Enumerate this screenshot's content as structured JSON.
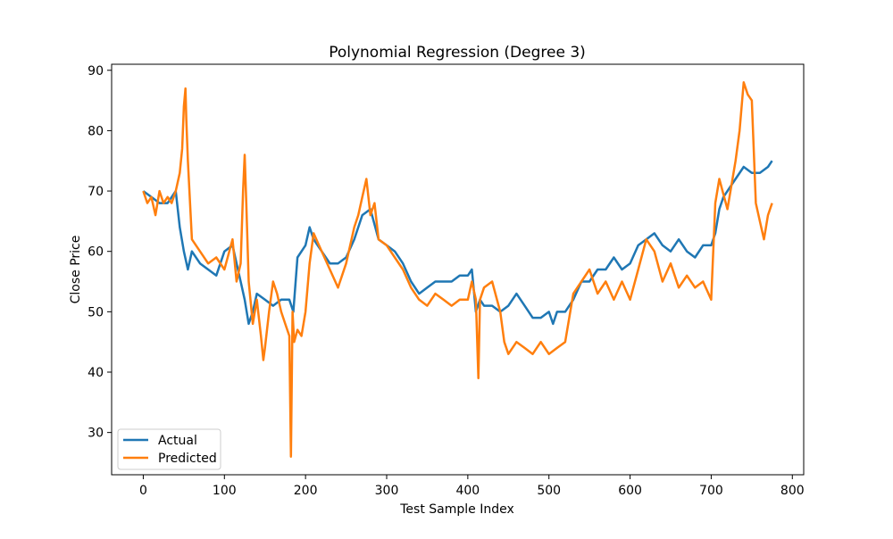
{
  "chart_data": {
    "type": "line",
    "title": "Polynomial Regression (Degree 3)",
    "xlabel": "Test Sample Index",
    "ylabel": "Close Price",
    "xlim": [
      -39,
      814
    ],
    "ylim": [
      23,
      91
    ],
    "xticks": [
      0,
      100,
      200,
      300,
      400,
      500,
      600,
      700,
      800
    ],
    "yticks": [
      30,
      40,
      50,
      60,
      70,
      80,
      90
    ],
    "grid": false,
    "legend_position": "lower-left",
    "series": [
      {
        "name": "Actual",
        "color": "#1f77b4",
        "x": [
          0,
          10,
          20,
          30,
          40,
          45,
          50,
          55,
          60,
          70,
          80,
          90,
          100,
          110,
          115,
          120,
          125,
          130,
          135,
          140,
          150,
          160,
          170,
          180,
          185,
          190,
          200,
          205,
          210,
          220,
          230,
          240,
          250,
          260,
          270,
          280,
          290,
          300,
          310,
          320,
          330,
          340,
          350,
          360,
          370,
          380,
          390,
          400,
          405,
          410,
          415,
          420,
          430,
          440,
          450,
          460,
          470,
          480,
          490,
          500,
          505,
          510,
          520,
          530,
          540,
          550,
          560,
          570,
          580,
          590,
          600,
          610,
          620,
          630,
          640,
          650,
          660,
          670,
          680,
          690,
          700,
          705,
          710,
          715,
          720,
          730,
          740,
          750,
          760,
          770,
          775
        ],
        "values": [
          70,
          69,
          68,
          68,
          70,
          64,
          60,
          57,
          60,
          58,
          57,
          56,
          60,
          61,
          58,
          55,
          52,
          48,
          50,
          53,
          52,
          51,
          52,
          52,
          50,
          59,
          61,
          64,
          62,
          60,
          58,
          58,
          59,
          62,
          66,
          67,
          62,
          61,
          60,
          58,
          55,
          53,
          54,
          55,
          55,
          55,
          56,
          56,
          57,
          50,
          52,
          51,
          51,
          50,
          51,
          53,
          51,
          49,
          49,
          50,
          48,
          50,
          50,
          52,
          55,
          55,
          57,
          57,
          59,
          57,
          58,
          61,
          62,
          63,
          61,
          60,
          62,
          60,
          59,
          61,
          61,
          63,
          67,
          69,
          70,
          72,
          74,
          73,
          73,
          74,
          75
        ]
      },
      {
        "name": "Predicted",
        "color": "#ff7f0e",
        "x": [
          0,
          5,
          10,
          15,
          20,
          25,
          30,
          35,
          40,
          45,
          48,
          50,
          52,
          53,
          55,
          60,
          70,
          80,
          90,
          100,
          110,
          115,
          120,
          123,
          125,
          127,
          130,
          135,
          140,
          145,
          148,
          150,
          155,
          160,
          165,
          170,
          175,
          180,
          182,
          184,
          186,
          190,
          195,
          200,
          205,
          210,
          220,
          230,
          240,
          250,
          260,
          265,
          270,
          275,
          280,
          285,
          290,
          300,
          310,
          320,
          330,
          340,
          350,
          360,
          370,
          380,
          390,
          400,
          405,
          410,
          413,
          415,
          420,
          430,
          440,
          445,
          450,
          460,
          470,
          480,
          490,
          500,
          510,
          520,
          530,
          540,
          550,
          560,
          570,
          580,
          590,
          600,
          610,
          620,
          630,
          640,
          650,
          660,
          670,
          680,
          690,
          700,
          705,
          710,
          720,
          730,
          735,
          740,
          745,
          750,
          755,
          760,
          765,
          770,
          775
        ],
        "values": [
          70,
          68,
          69,
          66,
          70,
          68,
          69,
          68,
          70,
          73,
          77,
          84,
          87,
          82,
          75,
          62,
          60,
          58,
          59,
          57,
          62,
          55,
          58,
          70,
          76,
          68,
          55,
          48,
          52,
          46,
          42,
          44,
          50,
          55,
          53,
          50,
          48,
          46,
          26,
          50,
          45,
          47,
          46,
          50,
          58,
          63,
          60,
          57,
          54,
          58,
          64,
          66,
          69,
          72,
          66,
          68,
          62,
          61,
          59,
          57,
          54,
          52,
          51,
          53,
          52,
          51,
          52,
          52,
          55,
          52,
          39,
          52,
          54,
          55,
          50,
          45,
          43,
          45,
          44,
          43,
          45,
          43,
          44,
          45,
          53,
          55,
          57,
          53,
          55,
          52,
          55,
          52,
          57,
          62,
          60,
          55,
          58,
          54,
          56,
          54,
          55,
          52,
          68,
          72,
          67,
          75,
          80,
          88,
          86,
          85,
          68,
          65,
          62,
          66,
          68
        ]
      }
    ]
  }
}
